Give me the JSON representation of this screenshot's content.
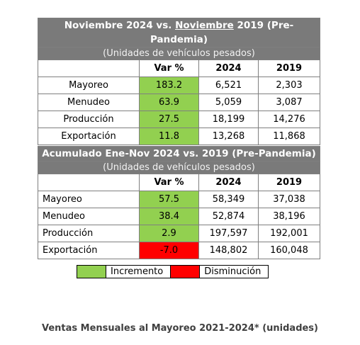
{
  "table1": {
    "title_prefix": "Noviembre 2024 vs. ",
    "title_underlined": "Noviembre",
    "title_suffix": " 2019 (Pre-Pandemia)",
    "subtitle": "(Unidades de vehículos pesados)",
    "columns": [
      "Var %",
      "2024",
      "2019"
    ],
    "rows": [
      {
        "label": "Mayoreo",
        "var": "183.2",
        "y2024": "6,521",
        "y2019": "2,303",
        "status": "increment"
      },
      {
        "label": "Menudeo",
        "var": "63.9",
        "y2024": "5,059",
        "y2019": "3,087",
        "status": "increment"
      },
      {
        "label": "Producción",
        "var": "27.5",
        "y2024": "18,199",
        "y2019": "14,276",
        "status": "increment"
      },
      {
        "label": "Exportación",
        "var": "11.8",
        "y2024": "13,268",
        "y2019": "11,868",
        "status": "increment"
      }
    ]
  },
  "table2": {
    "title": "Acumulado Ene-Nov 2024 vs. 2019 (Pre-Pandemia)",
    "subtitle": "(Unidades de vehículos pesados)",
    "columns": [
      "Var %",
      "2024",
      "2019"
    ],
    "rows": [
      {
        "label": "Mayoreo",
        "var": "57.5",
        "y2024": "58,349",
        "y2019": "37,038",
        "status": "increment"
      },
      {
        "label": "Menudeo",
        "var": "38.4",
        "y2024": "52,874",
        "y2019": "38,196",
        "status": "increment"
      },
      {
        "label": "Producción",
        "var": "2.9",
        "y2024": "197,597",
        "y2019": "192,001",
        "status": "increment"
      },
      {
        "label": "Exportación",
        "var": "-7.0",
        "y2024": "148,802",
        "y2019": "160,048",
        "status": "decrement"
      }
    ]
  },
  "legend": {
    "increment_label": "Incremento",
    "decrement_label": "Disminución",
    "increment_color": "#92d050",
    "decrement_color": "#ff0000"
  },
  "caption": "Ventas Mensuales al Mayoreo 2021-2024* (unidades)"
}
